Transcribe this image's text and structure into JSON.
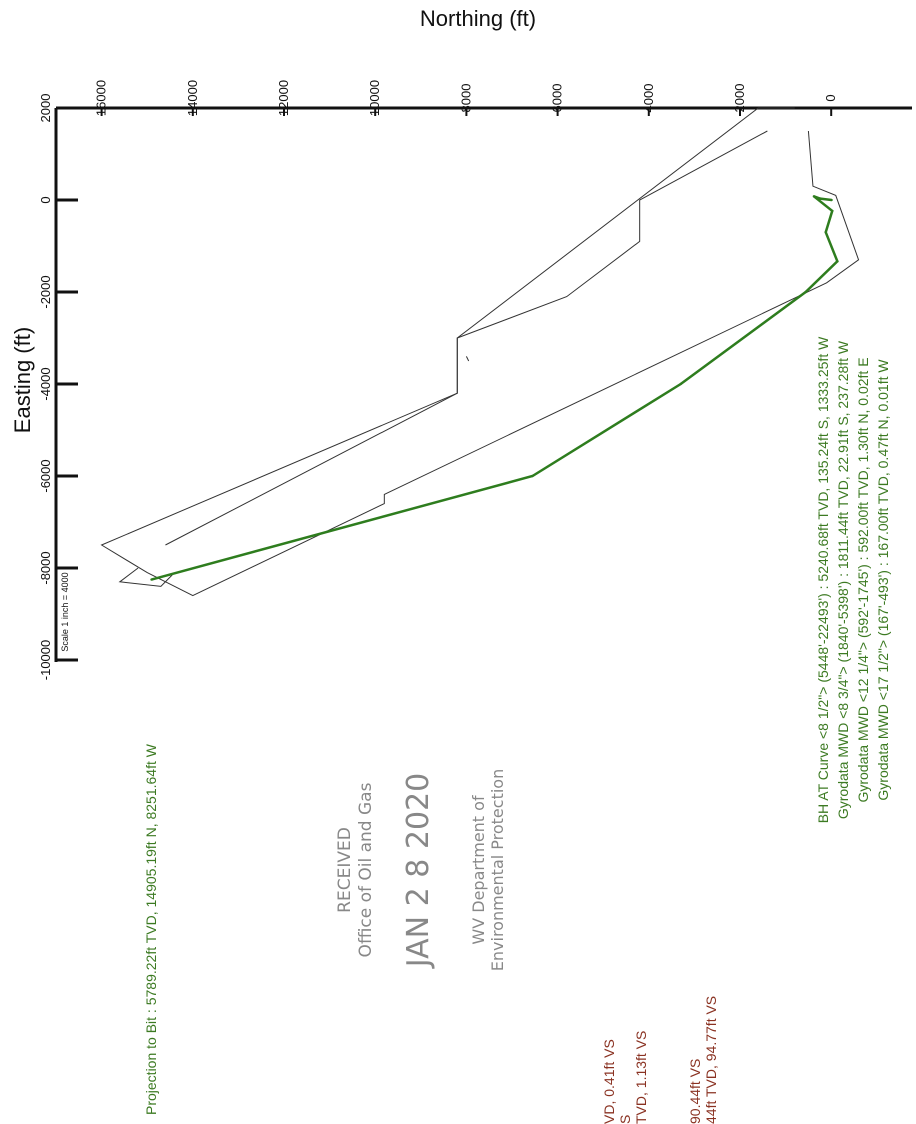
{
  "colors": {
    "well_path": "#2e7d1e",
    "survey_text": "#3c7a22",
    "vs_text": "#8a3222",
    "outline": "#333333",
    "stamp": "#888888"
  },
  "stamp": {
    "received": "RECEIVED",
    "office": "Office of Oil and Gas",
    "date": "JAN 2 8 2020",
    "dept": "WV Department of",
    "env": "Environmental Protection"
  },
  "vs_fragments": [
    "VD, 0.41ft VS",
    "S",
    "TVD, 1.13ft VS",
    "90.44ft VS",
    "44ft TVD, 94.77ft VS"
  ],
  "chart_data": {
    "type": "line",
    "xlabel": "Easting (ft)",
    "ylabel": "Northing (ft)",
    "xlim": [
      -10000,
      2000
    ],
    "ylim": [
      -2000,
      17000
    ],
    "x_ticks": [
      -10000,
      -8000,
      -6000,
      -4000,
      -2000,
      0,
      2000
    ],
    "y_ticks": [
      16000,
      14000,
      12000,
      10000,
      8000,
      6000,
      4000,
      2000,
      0,
      -2000
    ],
    "scale_note": "Scale 1 inch = 4000",
    "grid": false,
    "series": [
      {
        "values": [
          {
            "x": -1,
            "y": -9
          },
          {
            "x": 30,
            "y": 240
          },
          {
            "x": 80,
            "y": 380
          },
          {
            "x": -237,
            "y": -23
          },
          {
            "x": -700,
            "y": 120
          },
          {
            "x": -1333,
            "y": -135
          },
          {
            "x": -2000,
            "y": 560
          },
          {
            "x": -4000,
            "y": 3300
          },
          {
            "x": -6000,
            "y": 6550
          },
          {
            "x": -8252,
            "y": 14905
          }
        ]
      }
    ],
    "outlines": [
      [
        {
          "x": 2000,
          "y": 800
        },
        {
          "x": 2000,
          "y": 1600
        },
        {
          "x": -3000,
          "y": 8200
        },
        {
          "x": -4200,
          "y": 8200
        },
        {
          "x": -7500,
          "y": 14600
        }
      ],
      [
        {
          "x": 1500,
          "y": 1400
        },
        {
          "x": 0,
          "y": 4200
        },
        {
          "x": -900,
          "y": 4200
        },
        {
          "x": -2100,
          "y": 5800
        },
        {
          "x": -3000,
          "y": 8200
        },
        {
          "x": -4200,
          "y": 8200
        },
        {
          "x": -7500,
          "y": 16000
        },
        {
          "x": -8100,
          "y": 15000
        },
        {
          "x": -8600,
          "y": 14000
        },
        {
          "x": -6600,
          "y": 9800
        },
        {
          "x": -6400,
          "y": 9800
        },
        {
          "x": -1800,
          "y": 100
        },
        {
          "x": -1300,
          "y": -600
        },
        {
          "x": 100,
          "y": -100
        },
        {
          "x": 300,
          "y": 400
        },
        {
          "x": 1500,
          "y": 500
        }
      ],
      [
        {
          "x": -8000,
          "y": 15200
        },
        {
          "x": -8300,
          "y": 15600
        },
        {
          "x": -8400,
          "y": 14700
        },
        {
          "x": -8150,
          "y": 14450
        }
      ],
      [
        {
          "x": -3400,
          "y": 8000
        },
        {
          "x": -3500,
          "y": 7950
        }
      ]
    ],
    "annotations": [
      "BH AT Curve <8 1/2\"> (5448'-22493') : 5240.68ft TVD, 135.24ft S, 1333.25ft W",
      "Gyrodata MWD <8 3/4\"> (1840'-5398') : 1811.44ft TVD, 22.91ft S, 237.28ft W",
      "Gyrodata MWD <12 1/4\"> (592'-1745') : 592.00ft TVD, 1.30ft N, 0.02ft E",
      "Gyrodata MWD <17 1/2\"> (167'-493') : 167.00ft TVD, 0.47ft N, 0.01ft W",
      "Projection to Bit : 5789.22ft TVD, 14905.19ft N, 8251.64ft W"
    ]
  }
}
